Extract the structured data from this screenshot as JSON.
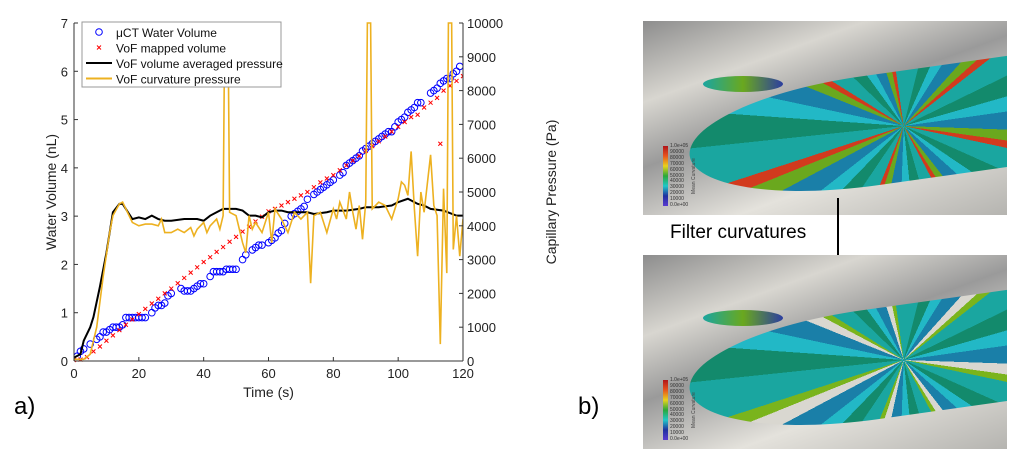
{
  "chart_data": {
    "type": "line",
    "panel_label": "a)",
    "xlabel": "Time (s)",
    "ylabel": "Water Volume (nL)",
    "y2label": "Capillary Pressure (Pa)",
    "xlim": [
      0,
      120
    ],
    "ylim": [
      0,
      7
    ],
    "y2lim": [
      0,
      10000
    ],
    "xticks": [
      0,
      20,
      40,
      60,
      80,
      100,
      120
    ],
    "yticks": [
      0,
      1,
      2,
      3,
      4,
      5,
      6,
      7
    ],
    "y2ticks": [
      0,
      1000,
      2000,
      3000,
      4000,
      5000,
      6000,
      7000,
      8000,
      9000,
      10000
    ],
    "grid": false,
    "legend_position": "top-left",
    "series": [
      {
        "name": "μCT Water Volume",
        "axis": "left",
        "style": "circle",
        "color": "#0000ff",
        "x": [
          1,
          2,
          3,
          5,
          7,
          8,
          9,
          10,
          11,
          12,
          13,
          14,
          15,
          16,
          17,
          18,
          19,
          20,
          21,
          22,
          24,
          25,
          26,
          27,
          28,
          29,
          30,
          33,
          34,
          35,
          36,
          37,
          38,
          39,
          40,
          42,
          43,
          44,
          45,
          46,
          47,
          48,
          49,
          50,
          52,
          53,
          55,
          56,
          57,
          58,
          60,
          61,
          62,
          63,
          64,
          65,
          67,
          68,
          69,
          70,
          71,
          72,
          74,
          75,
          76,
          77,
          78,
          79,
          80,
          82,
          83,
          84,
          85,
          86,
          87,
          88,
          89,
          90,
          91,
          92,
          93,
          94,
          95,
          96,
          97,
          98,
          99,
          100,
          101,
          102,
          103,
          104,
          105,
          106,
          107,
          110,
          111,
          112,
          113,
          114,
          115,
          116,
          117,
          118,
          119
        ],
        "y": [
          0.1,
          0.2,
          0.25,
          0.35,
          0.45,
          0.5,
          0.6,
          0.6,
          0.65,
          0.7,
          0.7,
          0.7,
          0.75,
          0.9,
          0.9,
          0.9,
          0.9,
          0.9,
          0.9,
          0.9,
          1.0,
          1.1,
          1.15,
          1.15,
          1.2,
          1.35,
          1.4,
          1.5,
          1.45,
          1.45,
          1.45,
          1.5,
          1.55,
          1.6,
          1.6,
          1.75,
          1.85,
          1.85,
          1.85,
          1.85,
          1.9,
          1.9,
          1.9,
          1.9,
          2.1,
          2.2,
          2.3,
          2.35,
          2.4,
          2.4,
          2.45,
          2.5,
          2.55,
          2.65,
          2.7,
          2.85,
          3.0,
          3.05,
          3.1,
          3.15,
          3.2,
          3.35,
          3.45,
          3.5,
          3.55,
          3.6,
          3.65,
          3.7,
          3.75,
          3.85,
          3.9,
          4.05,
          4.1,
          4.15,
          4.2,
          4.25,
          4.35,
          4.4,
          4.45,
          4.5,
          4.55,
          4.6,
          4.65,
          4.7,
          4.75,
          4.75,
          4.85,
          4.95,
          5.0,
          5.05,
          5.15,
          5.2,
          5.25,
          5.35,
          5.35,
          5.55,
          5.6,
          5.65,
          5.75,
          5.8,
          5.85,
          5.85,
          5.95,
          6.0,
          6.1
        ]
      },
      {
        "name": "VoF mapped volume",
        "axis": "left",
        "style": "x",
        "color": "#ff0000",
        "x": [
          0,
          2,
          4,
          6,
          8,
          10,
          12,
          14,
          16,
          18,
          20,
          22,
          24,
          26,
          28,
          30,
          32,
          34,
          36,
          38,
          40,
          42,
          44,
          46,
          48,
          50,
          52,
          54,
          56,
          58,
          60,
          62,
          64,
          66,
          68,
          70,
          72,
          74,
          76,
          78,
          80,
          82,
          84,
          86,
          88,
          90,
          92,
          94,
          96,
          98,
          100,
          102,
          104,
          106,
          108,
          110,
          112,
          113,
          114,
          116,
          118,
          120
        ],
        "y": [
          0.02,
          0.03,
          0.08,
          0.2,
          0.3,
          0.42,
          0.53,
          0.64,
          0.75,
          0.86,
          0.97,
          1.08,
          1.19,
          1.29,
          1.4,
          1.5,
          1.61,
          1.72,
          1.83,
          1.94,
          2.05,
          2.15,
          2.26,
          2.36,
          2.47,
          2.57,
          2.68,
          2.78,
          2.89,
          2.99,
          3.1,
          3.15,
          3.22,
          3.29,
          3.36,
          3.43,
          3.5,
          3.6,
          3.7,
          3.78,
          3.85,
          3.95,
          4.05,
          4.15,
          4.25,
          4.35,
          4.45,
          4.55,
          4.65,
          4.75,
          4.85,
          4.95,
          5.05,
          5.1,
          5.25,
          5.35,
          5.45,
          4.5,
          5.6,
          5.7,
          5.8,
          5.9
        ]
      },
      {
        "name": "VoF volume averaged pressure",
        "axis": "right",
        "style": "line",
        "color": "#000000",
        "x": [
          0,
          2,
          3,
          5,
          6,
          8,
          10,
          12,
          14,
          15,
          16,
          18,
          20,
          22,
          24,
          26,
          28,
          30,
          34,
          38,
          40,
          42,
          44,
          46,
          48,
          50,
          52,
          54,
          56,
          58,
          60,
          62,
          64,
          66,
          70,
          72,
          74,
          78,
          80,
          84,
          88,
          90,
          94,
          98,
          100,
          103,
          106,
          108,
          110,
          114,
          118,
          120
        ],
        "y": [
          100,
          200,
          600,
          1000,
          1300,
          2200,
          3200,
          4400,
          4650,
          4650,
          4500,
          4200,
          4250,
          4200,
          4300,
          4200,
          4150,
          4150,
          4200,
          4200,
          4150,
          4300,
          4400,
          4500,
          4500,
          4500,
          4450,
          4300,
          4300,
          4250,
          4400,
          4450,
          4450,
          4400,
          4400,
          4400,
          4350,
          4400,
          4450,
          4450,
          4500,
          4550,
          4550,
          4600,
          4700,
          4800,
          4650,
          4600,
          4500,
          4450,
          4300,
          4300
        ]
      },
      {
        "name": "VoF curvature pressure",
        "axis": "right",
        "style": "line",
        "color": "#edb120",
        "x": [
          0,
          3,
          5,
          7,
          9,
          11,
          12,
          14,
          15,
          16,
          18,
          20,
          22,
          24,
          26,
          27,
          28,
          30,
          32,
          34,
          36,
          37,
          38,
          40,
          41,
          42,
          44,
          45,
          46,
          46.5,
          47.5,
          48,
          50,
          52,
          53,
          54,
          55,
          56,
          58,
          60,
          61,
          62,
          64,
          66,
          68,
          70,
          72,
          73,
          74,
          76,
          78,
          80,
          81,
          82,
          84,
          85,
          86,
          87,
          88,
          89,
          90,
          90.5,
          91.5,
          92,
          94,
          96,
          98,
          100,
          101,
          102,
          103,
          104,
          105,
          106,
          107,
          108,
          110,
          111,
          112,
          113,
          114,
          115,
          115.5,
          116.5,
          117,
          118,
          119,
          120
        ],
        "y": [
          50,
          50,
          200,
          1000,
          2500,
          3800,
          4300,
          4650,
          4700,
          4500,
          4100,
          4000,
          4050,
          4050,
          4000,
          4200,
          3800,
          3800,
          3900,
          3800,
          3950,
          3700,
          3900,
          4100,
          3800,
          4000,
          4200,
          3900,
          4300,
          10000,
          10000,
          4400,
          4300,
          3500,
          3200,
          4300,
          3900,
          4100,
          3800,
          4400,
          3500,
          4500,
          4200,
          3800,
          4400,
          4200,
          4400,
          2300,
          4300,
          4400,
          3800,
          4500,
          4200,
          4700,
          4200,
          5000,
          4400,
          3900,
          4600,
          3600,
          4700,
          10000,
          10000,
          4500,
          4700,
          4600,
          4200,
          4800,
          5300,
          5200,
          4900,
          6200,
          4500,
          3100,
          5000,
          4400,
          6100,
          4600,
          4300,
          500,
          5100,
          2600,
          10000,
          10000,
          3300,
          4300,
          3100,
          4200
        ]
      }
    ]
  },
  "figure_b": {
    "panel_label": "b)",
    "arrow_label": "Filter curvatures",
    "colorbar_title": "Mean Curvature",
    "colorbar_labels": [
      "1.0e+05",
      "90000",
      "80000",
      "70000",
      "60000",
      "50000",
      "40000",
      "30000",
      "20000",
      "10000",
      "0.0e+00"
    ]
  }
}
